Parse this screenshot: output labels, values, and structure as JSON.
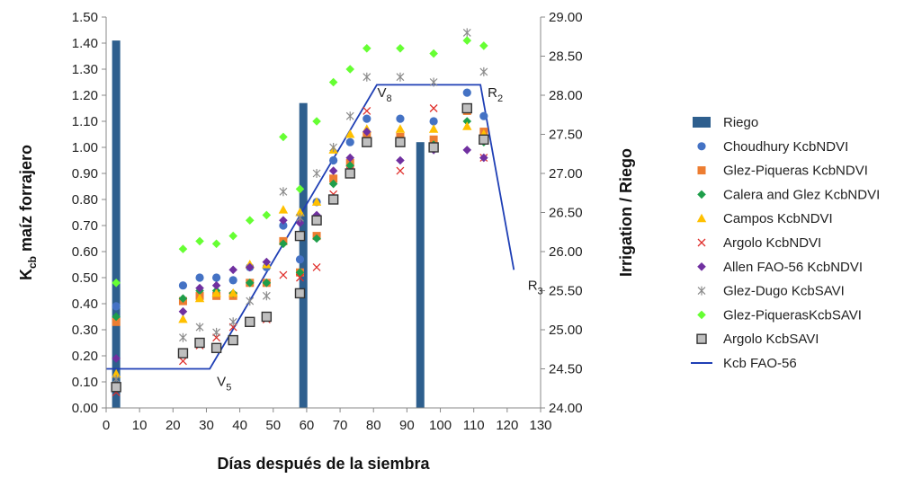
{
  "chart_data": {
    "type": "scatter",
    "xlabel": "Días después de la siembra",
    "ylabel": "maíz forrajero",
    "ylabel_main": "K",
    "ylabel_sub": "cb",
    "y2label": "Irrigation / Riego",
    "xlim": [
      0,
      130
    ],
    "ylim": [
      0,
      1.5
    ],
    "y2lim": [
      24.0,
      29.0
    ],
    "x_ticks": [
      "0",
      "10",
      "20",
      "30",
      "40",
      "50",
      "60",
      "70",
      "80",
      "90",
      "100",
      "110",
      "120",
      "130"
    ],
    "y_ticks": [
      "0.00",
      "0.10",
      "0.20",
      "0.30",
      "0.40",
      "0.50",
      "0.60",
      "0.70",
      "0.80",
      "0.90",
      "1.00",
      "1.10",
      "1.20",
      "1.30",
      "1.40",
      "1.50"
    ],
    "y2_ticks": [
      "24.00",
      "24.50",
      "25.00",
      "25.50",
      "26.00",
      "26.50",
      "27.00",
      "27.50",
      "28.00",
      "28.50",
      "29.00"
    ],
    "annotations": [
      {
        "main": "V",
        "sub": "5",
        "x": 31,
        "y": 0.07
      },
      {
        "main": "V",
        "sub": "8",
        "x": 79,
        "y": 1.18
      },
      {
        "main": "R",
        "sub": "2",
        "x": 112,
        "y": 1.18
      },
      {
        "main": "R",
        "sub": "3",
        "x": 124,
        "y": 0.44
      }
    ],
    "bars": {
      "name": "Riego",
      "color": "#2e5f8e",
      "x": [
        3,
        59,
        94
      ],
      "y": [
        28.7,
        27.9,
        27.4
      ]
    },
    "line": {
      "name": "Kcb FAO-56",
      "color": "#1f3fb5",
      "x": [
        0,
        31,
        81,
        112,
        122
      ],
      "y": [
        0.15,
        0.15,
        1.24,
        1.24,
        0.53
      ]
    },
    "series": [
      {
        "name": "Choudhury KcbNDVI",
        "marker": "circle",
        "color": "#4472c4",
        "x": [
          3,
          23,
          28,
          33,
          38,
          43,
          48,
          53,
          58,
          63,
          68,
          73,
          78,
          88,
          98,
          108,
          113
        ],
        "y": [
          0.39,
          0.47,
          0.5,
          0.5,
          0.49,
          0.54,
          0.54,
          0.7,
          0.57,
          0.79,
          0.95,
          1.02,
          1.11,
          1.11,
          1.1,
          1.21,
          1.12
        ]
      },
      {
        "name": "Glez-Piqueras KcbNDVI",
        "marker": "square",
        "color": "#ed7d31",
        "x": [
          3,
          23,
          28,
          33,
          38,
          43,
          48,
          53,
          58,
          63,
          68,
          73,
          78,
          88,
          98,
          108,
          113
        ],
        "y": [
          0.33,
          0.41,
          0.43,
          0.43,
          0.43,
          0.48,
          0.48,
          0.64,
          0.52,
          0.66,
          0.88,
          0.94,
          1.04,
          1.04,
          1.03,
          1.14,
          1.06
        ]
      },
      {
        "name": "Calera and Glez KcbNDVI",
        "marker": "diamond",
        "color": "#1e9e4a",
        "x": [
          3,
          23,
          28,
          33,
          38,
          43,
          48,
          53,
          58,
          63,
          68,
          73,
          78,
          88,
          98,
          108,
          113
        ],
        "y": [
          0.35,
          0.42,
          0.45,
          0.45,
          0.44,
          0.48,
          0.48,
          0.63,
          0.52,
          0.65,
          0.86,
          0.93,
          1.02,
          1.02,
          1.01,
          1.1,
          1.02
        ]
      },
      {
        "name": "Campos KcbNDVI",
        "marker": "triangle",
        "color": "#ffc000",
        "x": [
          3,
          23,
          28,
          33,
          38,
          43,
          48,
          53,
          58,
          63,
          68,
          73,
          78,
          88,
          98,
          108,
          113
        ],
        "y": [
          0.13,
          0.34,
          0.42,
          0.44,
          0.44,
          0.55,
          0.55,
          0.76,
          0.75,
          0.79,
          0.99,
          1.05,
          1.07,
          1.07,
          1.07,
          1.08,
          1.05
        ]
      },
      {
        "name": "Argolo KcbNDVI",
        "marker": "x",
        "color": "#e0302c",
        "x": [
          3,
          23,
          28,
          33,
          38,
          43,
          48,
          53,
          58,
          63,
          68,
          73,
          78,
          88,
          98,
          108,
          113
        ],
        "y": [
          0.06,
          0.18,
          0.24,
          0.27,
          0.31,
          0.33,
          0.34,
          0.51,
          0.5,
          0.54,
          0.82,
          0.91,
          1.14,
          0.91,
          1.15,
          1.15,
          0.96
        ]
      },
      {
        "name": "Allen FAO-56 KcbNDVI",
        "marker": "diamond",
        "color": "#7030a0",
        "x": [
          3,
          23,
          28,
          33,
          38,
          43,
          48,
          53,
          58,
          63,
          68,
          73,
          78,
          88,
          98,
          108,
          113
        ],
        "y": [
          0.19,
          0.37,
          0.46,
          0.47,
          0.53,
          0.54,
          0.56,
          0.72,
          0.71,
          0.74,
          0.91,
          0.96,
          1.06,
          0.95,
          0.99,
          0.99,
          0.96
        ]
      },
      {
        "name": "Glez-Dugo KcbSAVI",
        "marker": "asterisk",
        "color": "#8c8c8c",
        "x": [
          3,
          23,
          28,
          33,
          38,
          43,
          48,
          53,
          58,
          63,
          68,
          73,
          78,
          88,
          98,
          108,
          113
        ],
        "y": [
          0.11,
          0.27,
          0.31,
          0.29,
          0.33,
          0.41,
          0.43,
          0.83,
          0.73,
          0.9,
          1.0,
          1.12,
          1.27,
          1.27,
          1.25,
          1.44,
          1.29
        ]
      },
      {
        "name": "Glez-PiquerasKcbSAVI",
        "marker": "diamond",
        "color": "#66ff33",
        "x": [
          3,
          23,
          28,
          33,
          38,
          43,
          48,
          53,
          58,
          63,
          68,
          73,
          78,
          88,
          98,
          108,
          113
        ],
        "y": [
          0.48,
          0.61,
          0.64,
          0.63,
          0.66,
          0.72,
          0.74,
          1.04,
          0.84,
          1.1,
          1.25,
          1.3,
          1.38,
          1.38,
          1.36,
          1.41,
          1.39
        ]
      },
      {
        "name": "Argolo KcbSAVI",
        "marker": "square-gray",
        "color": "#bfbfbf",
        "x": [
          3,
          23,
          28,
          33,
          38,
          43,
          48,
          58,
          58,
          63,
          68,
          73,
          78,
          88,
          98,
          108,
          113
        ],
        "y": [
          0.08,
          0.21,
          0.25,
          0.23,
          0.26,
          0.33,
          0.35,
          0.66,
          0.44,
          0.72,
          0.8,
          0.9,
          1.02,
          1.02,
          1.0,
          1.15,
          1.03
        ]
      }
    ]
  }
}
